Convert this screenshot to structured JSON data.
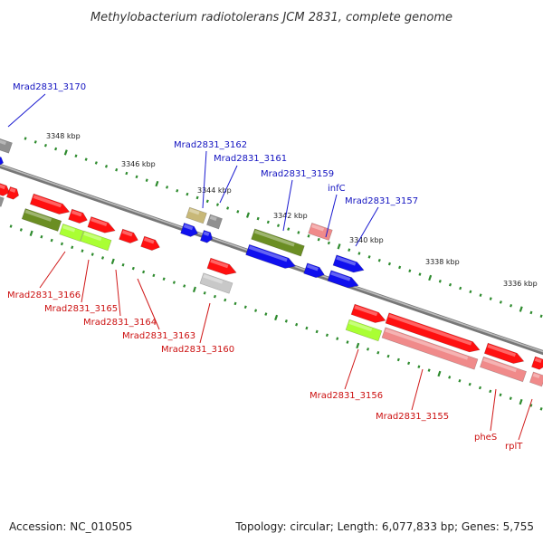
{
  "title": "Methylobacterium radiotolerans JCM 2831, complete genome",
  "footer": {
    "accession": "Accession: NC_010505",
    "summary": "Topology: circular; Length: 6,077,833 bp; Genes: 5,755"
  },
  "colors": {
    "red": "#ff1010",
    "pink": "#f08a8a",
    "dark_olive": "#6b8e23",
    "lime": "#aaff33",
    "khaki": "#c8b878",
    "grey": "#909090",
    "light_grey": "#c8c8c8",
    "blue": "#1010ee",
    "tick_green": "#2e8b2e"
  },
  "ticks": [
    {
      "label": "3348 kbp"
    },
    {
      "label": "3346 kbp"
    },
    {
      "label": "3344 kbp"
    },
    {
      "label": "3342 kbp"
    },
    {
      "label": "3340 kbp"
    },
    {
      "label": "3338 kbp"
    },
    {
      "label": "3336 kbp"
    }
  ],
  "genes_forward": [
    {
      "label": "Mrad2831_3170"
    },
    {
      "label": "Mrad2831_3162"
    },
    {
      "label": "Mrad2831_3161"
    },
    {
      "label": "Mrad2831_3159"
    },
    {
      "label": "infC"
    },
    {
      "label": "Mrad2831_3157"
    }
  ],
  "genes_reverse": [
    {
      "label": "Mrad2831_3166"
    },
    {
      "label": "Mrad2831_3165"
    },
    {
      "label": "Mrad2831_3164"
    },
    {
      "label": "Mrad2831_3163"
    },
    {
      "label": "Mrad2831_3160"
    },
    {
      "label": "Mrad2831_3156"
    },
    {
      "label": "Mrad2831_3155"
    },
    {
      "label": "pheS"
    },
    {
      "label": "rplT"
    }
  ]
}
